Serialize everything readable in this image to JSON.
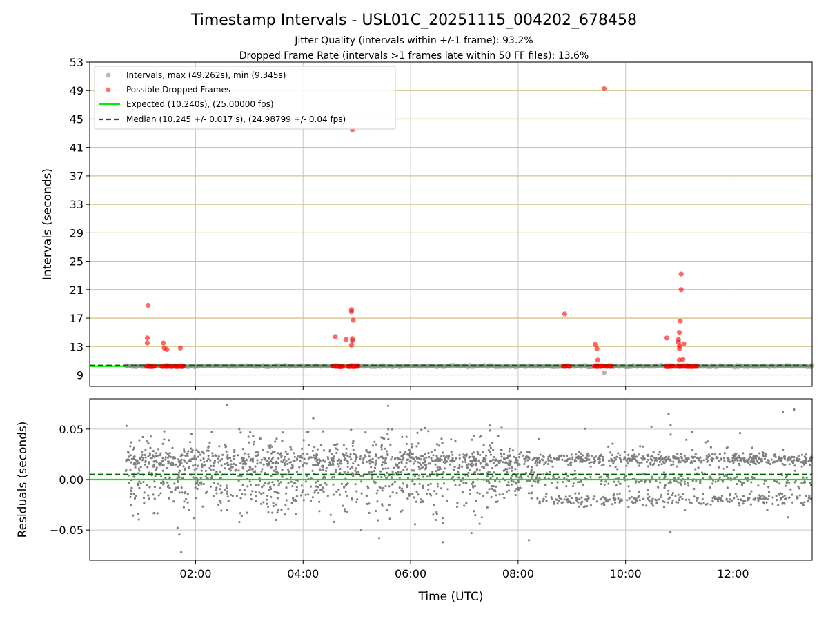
{
  "header": {
    "title": "Timestamp Intervals - USL01C_20251115_004202_678458",
    "subtitle_jitter": "Jitter Quality (intervals within +/-1 frame): 93.2%",
    "subtitle_dropped": "Dropped Frame Rate (intervals >1 frames late within 50 FF files): 13.6%"
  },
  "colors": {
    "intervals": "#808080",
    "dropped": "#ff0000",
    "expected": "#00ee00",
    "median": "#006400",
    "hgrid": "#d4c48a",
    "vgrid": "#c8c8c8",
    "axis": "#000000"
  },
  "chart_data": [
    {
      "type": "scatter",
      "name": "intervals",
      "xlabel": "",
      "ylabel": "Intervals (seconds)",
      "xlim_hours": [
        0.03,
        13.47
      ],
      "ylim": [
        7.4,
        53
      ],
      "yticks": [
        9,
        13,
        17,
        21,
        25,
        29,
        33,
        37,
        41,
        45,
        49,
        53
      ],
      "xticks_hours": [
        2,
        4,
        6,
        8,
        10,
        12
      ],
      "xtick_labels_visible": false,
      "grid": {
        "x": true,
        "y": true
      },
      "legend": {
        "placement": "top-left",
        "entries": [
          {
            "label": "Intervals, max (49.262s), min (9.345s)",
            "kind": "marker",
            "color": "#808080"
          },
          {
            "label": "Possible Dropped Frames",
            "kind": "marker",
            "color": "#ff0000"
          },
          {
            "label": "Expected (10.240s), (25.00000 fps)",
            "kind": "line",
            "color": "#00ee00"
          },
          {
            "label": "Median (10.245 +/- 0.017 s), (24.98799 +/- 0.04 fps)",
            "kind": "dashed",
            "color": "#006400"
          }
        ]
      },
      "expected_line": 10.24,
      "median_line": 10.245,
      "intervals_band": {
        "x_start": "00:42",
        "x_end": "13:28",
        "y": 10.24
      },
      "intervals_extra_points": [
        {
          "x": "09:36",
          "y": 9.345
        }
      ],
      "dropped_frames": [
        {
          "x": "01:07",
          "y": 18.8
        },
        {
          "x": "01:06",
          "y": 14.2
        },
        {
          "x": "01:06",
          "y": 13.5
        },
        {
          "x": "01:24",
          "y": 13.5
        },
        {
          "x": "01:25",
          "y": 12.8
        },
        {
          "x": "01:28",
          "y": 12.6
        },
        {
          "x": "01:43",
          "y": 12.8
        },
        {
          "x": "04:36",
          "y": 14.4
        },
        {
          "x": "04:48",
          "y": 14.0
        },
        {
          "x": "04:54",
          "y": 18.2
        },
        {
          "x": "04:54",
          "y": 17.9
        },
        {
          "x": "04:55",
          "y": 14.1
        },
        {
          "x": "04:55",
          "y": 13.8
        },
        {
          "x": "04:54",
          "y": 13.2
        },
        {
          "x": "04:56",
          "y": 16.7
        },
        {
          "x": "04:55",
          "y": 43.5
        },
        {
          "x": "08:52",
          "y": 17.6
        },
        {
          "x": "09:26",
          "y": 13.3
        },
        {
          "x": "09:28",
          "y": 12.7
        },
        {
          "x": "09:29",
          "y": 11.1
        },
        {
          "x": "09:36",
          "y": 49.262
        },
        {
          "x": "10:46",
          "y": 14.2
        },
        {
          "x": "10:59",
          "y": 14.0
        },
        {
          "x": "10:59",
          "y": 13.6
        },
        {
          "x": "11:00",
          "y": 13.1
        },
        {
          "x": "11:00",
          "y": 12.7
        },
        {
          "x": "11:00",
          "y": 15.0
        },
        {
          "x": "11:01",
          "y": 16.6
        },
        {
          "x": "11:02",
          "y": 21.0
        },
        {
          "x": "11:02",
          "y": 23.2
        },
        {
          "x": "11:05",
          "y": 13.4
        },
        {
          "x": "11:00",
          "y": 11.1
        },
        {
          "x": "11:04",
          "y": 11.2
        }
      ],
      "dropped_at_baseline_ranges": [
        [
          "01:05",
          "01:15"
        ],
        [
          "01:22",
          "01:35"
        ],
        [
          "01:37",
          "01:47"
        ],
        [
          "04:33",
          "04:45"
        ],
        [
          "04:50",
          "05:02"
        ],
        [
          "08:50",
          "08:58"
        ],
        [
          "09:25",
          "09:45"
        ],
        [
          "10:45",
          "10:54"
        ],
        [
          "10:58",
          "11:20"
        ]
      ],
      "dropped_baseline_y": 10.24
    },
    {
      "type": "scatter",
      "name": "residuals",
      "xlabel": "Time (UTC)",
      "ylabel": "Residuals (seconds)",
      "xlim_hours": [
        0.03,
        13.47
      ],
      "ylim": [
        -0.08,
        0.08
      ],
      "yticks": [
        -0.05,
        0.0,
        0.05
      ],
      "ytick_labels": [
        "−0.05",
        "0.00",
        "0.05"
      ],
      "xticks_hours": [
        2,
        4,
        6,
        8,
        10,
        12
      ],
      "xtick_labels": [
        "02:00",
        "04:00",
        "06:00",
        "08:00",
        "10:00",
        "12:00"
      ],
      "grid": {
        "x": true,
        "y": true
      },
      "expected_line": 0.0,
      "median_line": 0.005,
      "residual_points": {
        "x_start": "00:42",
        "x_end": "13:28",
        "count": 2500,
        "levels": [
          -0.02,
          0.0,
          0.02
        ],
        "extremes": [
          {
            "x": "01:44",
            "y": -0.072
          },
          {
            "x": "02:35",
            "y": 0.074
          },
          {
            "x": "05:35",
            "y": 0.073
          },
          {
            "x": "06:36",
            "y": -0.062
          },
          {
            "x": "08:12",
            "y": -0.06
          },
          {
            "x": "10:48",
            "y": 0.065
          },
          {
            "x": "10:50",
            "y": -0.052
          },
          {
            "x": "05:25",
            "y": -0.058
          }
        ]
      }
    }
  ]
}
